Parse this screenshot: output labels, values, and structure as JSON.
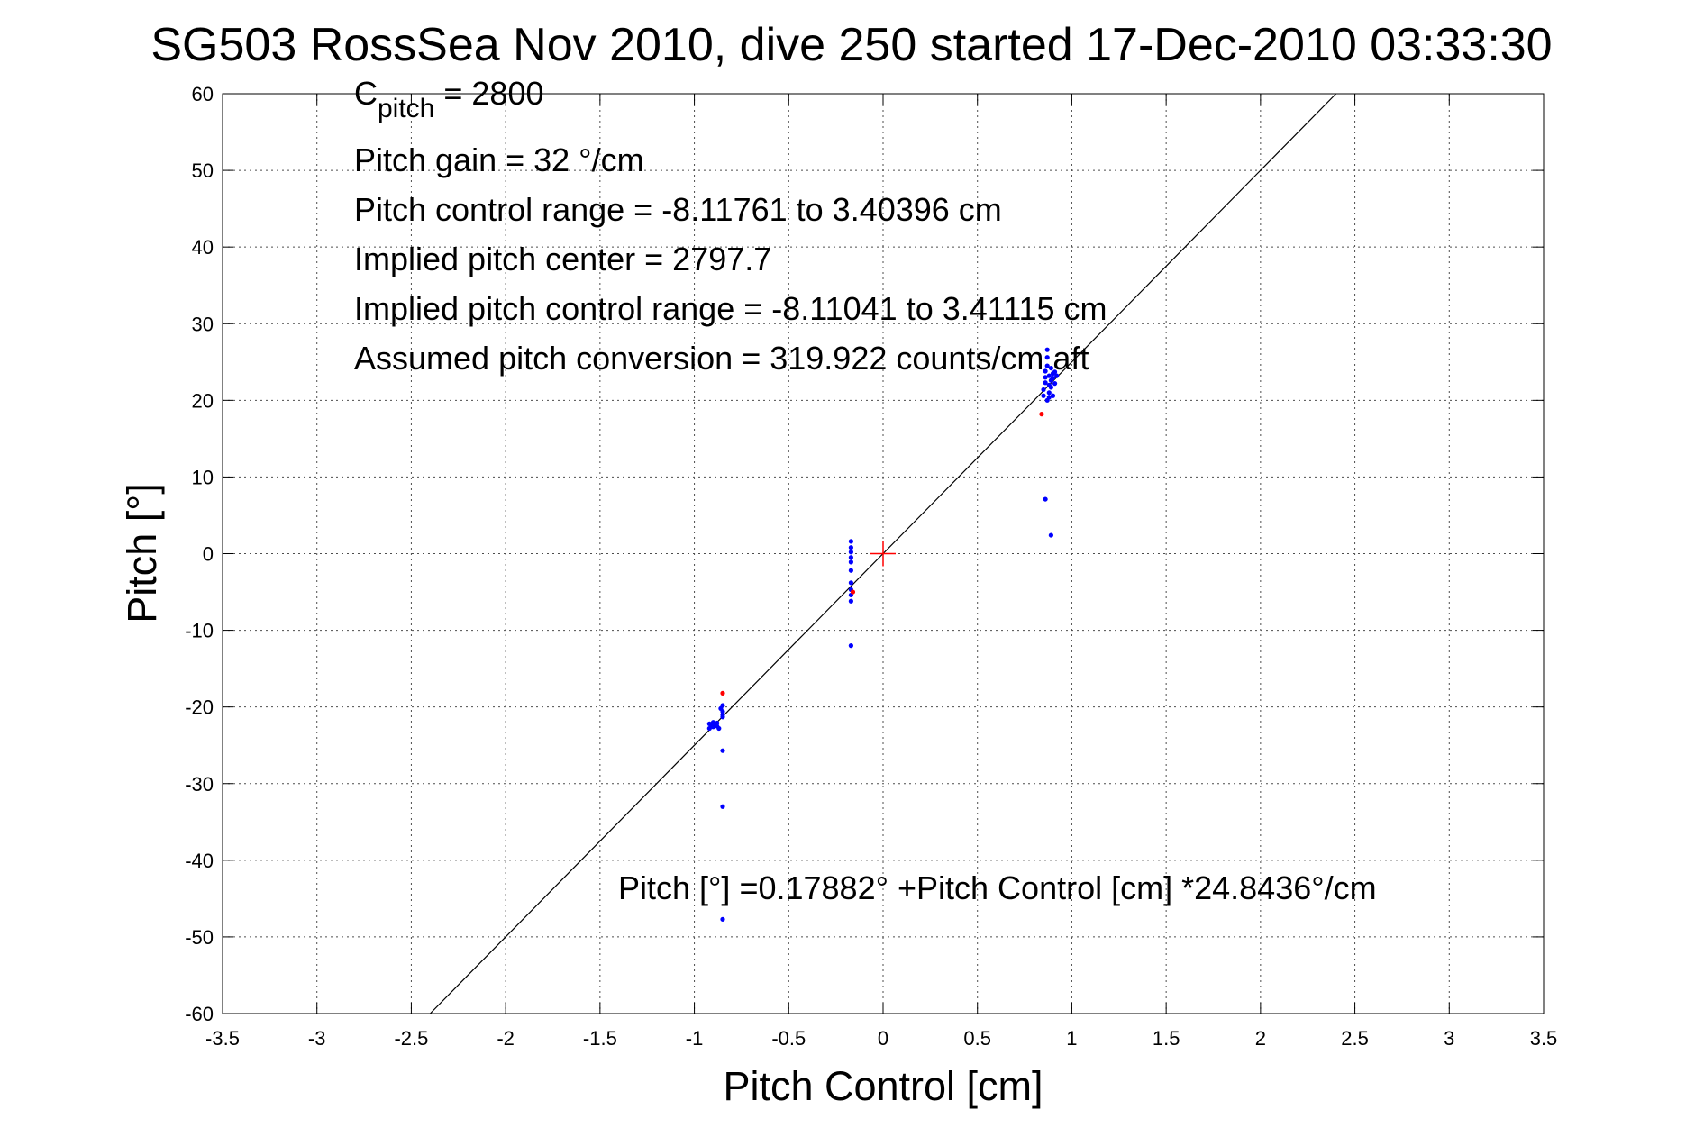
{
  "chart_data": {
    "type": "scatter",
    "title": "SG503 RossSea Nov 2010, dive 250 started 17-Dec-2010 03:33:30",
    "xlabel": "Pitch Control [cm]",
    "ylabel": "Pitch [°]",
    "xlim": [
      -3.5,
      3.5
    ],
    "ylim": [
      -60,
      60
    ],
    "xticks": [
      -3.5,
      -3,
      -2.5,
      -2,
      -1.5,
      -1,
      -0.5,
      0,
      0.5,
      1,
      1.5,
      2,
      2.5,
      3,
      3.5
    ],
    "xtick_labels": [
      "-3.5",
      "-3",
      "-2.5",
      "-2",
      "-1.5",
      "-1",
      "-0.5",
      "0",
      "0.5",
      "1",
      "1.5",
      "2",
      "2.5",
      "3",
      "3.5"
    ],
    "yticks": [
      -60,
      -50,
      -40,
      -30,
      -20,
      -10,
      0,
      10,
      20,
      30,
      40,
      50,
      60
    ],
    "ytick_labels": [
      "-60",
      "-50",
      "-40",
      "-30",
      "-20",
      "-10",
      "0",
      "10",
      "20",
      "30",
      "40",
      "50",
      "60"
    ],
    "grid": true,
    "grid_style": "dotted",
    "annotations": {
      "cpitch_main": "C",
      "cpitch_sub": "pitch",
      "cpitch_value": " = 2800",
      "lines": [
        "Pitch gain = 32 °/cm",
        "Pitch control range = -8.11761 to 3.40396 cm",
        "Implied pitch center = 2797.7",
        "Implied pitch control range = -8.11041 to 3.41115 cm",
        "Assumed pitch conversion = 319.922 counts/cm aft"
      ],
      "fit_equation": "Pitch [°] =0.17882° +Pitch Control [cm] *24.8436°/cm"
    },
    "fit_line": {
      "color": "#000000",
      "x": [
        -2.4,
        2.4
      ],
      "y": [
        -60,
        60
      ]
    },
    "origin_marker": {
      "x": 0,
      "y": 0,
      "color": "#ff0000"
    },
    "series": [
      {
        "color": "#0000ff",
        "points": [
          [
            -0.92,
            -22.2
          ],
          [
            -0.92,
            -22.8
          ],
          [
            -0.91,
            -22.4
          ],
          [
            -0.9,
            -22.0
          ],
          [
            -0.9,
            -22.6
          ],
          [
            -0.89,
            -22.3
          ],
          [
            -0.88,
            -22.5
          ],
          [
            -0.88,
            -22.1
          ],
          [
            -0.87,
            -22.8
          ],
          [
            -0.86,
            -20.2
          ],
          [
            -0.85,
            -20.6
          ],
          [
            -0.85,
            -19.8
          ],
          [
            -0.85,
            -21.0
          ],
          [
            -0.85,
            -21.3
          ],
          [
            -0.85,
            -25.7
          ],
          [
            -0.85,
            -33.0
          ],
          [
            -0.85,
            -47.7
          ],
          [
            -0.17,
            1.6
          ],
          [
            -0.17,
            0.8
          ],
          [
            -0.17,
            0.2
          ],
          [
            -0.17,
            -0.5
          ],
          [
            -0.17,
            -1.1
          ],
          [
            -0.17,
            -2.2
          ],
          [
            -0.17,
            -3.8
          ],
          [
            -0.17,
            -4.7
          ],
          [
            -0.17,
            -5.4
          ],
          [
            -0.17,
            -6.2
          ],
          [
            -0.17,
            -12.0
          ],
          [
            0.85,
            20.6
          ],
          [
            0.85,
            21.4
          ],
          [
            0.86,
            22.3
          ],
          [
            0.86,
            23.0
          ],
          [
            0.86,
            23.8
          ],
          [
            0.87,
            20.0
          ],
          [
            0.87,
            24.5
          ],
          [
            0.87,
            25.6
          ],
          [
            0.87,
            26.6
          ],
          [
            0.88,
            21.0
          ],
          [
            0.88,
            22.0
          ],
          [
            0.88,
            23.2
          ],
          [
            0.88,
            20.4
          ],
          [
            0.89,
            22.6
          ],
          [
            0.89,
            24.2
          ],
          [
            0.89,
            21.7
          ],
          [
            0.9,
            23.5
          ],
          [
            0.9,
            20.6
          ],
          [
            0.9,
            22.9
          ],
          [
            0.91,
            22.2
          ],
          [
            0.91,
            23.7
          ],
          [
            0.92,
            23.2
          ],
          [
            0.86,
            7.1
          ],
          [
            0.89,
            2.4
          ]
        ]
      },
      {
        "color": "#ff0000",
        "points": [
          [
            -0.85,
            -18.2
          ],
          [
            -0.16,
            -5.0
          ],
          [
            0.84,
            18.2
          ]
        ]
      }
    ]
  }
}
